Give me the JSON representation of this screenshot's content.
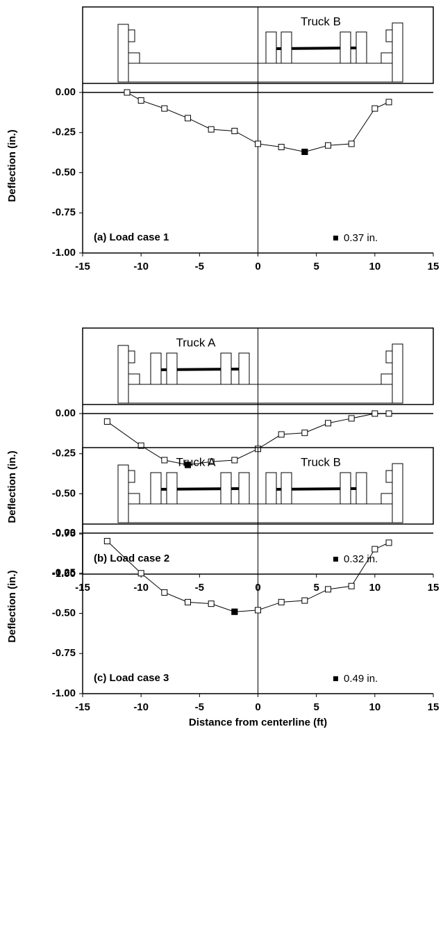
{
  "chart_data": [
    {
      "type": "line",
      "annotation": "(a) Load case 1",
      "truck_labels": [
        "Truck B"
      ],
      "ylabel": "Deflection (in.)",
      "series": [
        {
          "color": "#000000",
          "x": [
            -11.2,
            -10,
            -8,
            -6,
            -4,
            -2,
            0,
            2,
            4,
            6,
            8,
            10,
            11.2
          ],
          "values": [
            0,
            -0.05,
            -0.1,
            -0.16,
            -0.23,
            -0.24,
            -0.32,
            -0.34,
            -0.37,
            -0.33,
            -0.32,
            -0.1,
            -0.06
          ]
        },
        {
          "name": "0.37 in.",
          "color": "#000000",
          "x": [
            4
          ],
          "values": [
            -0.37
          ]
        }
      ],
      "xlim": [
        -15,
        15
      ],
      "xticks": [
        -15,
        -10,
        -5,
        0,
        5,
        10,
        15
      ],
      "ylim": [
        -1,
        0
      ],
      "yticks": [
        {
          "value": -1,
          "label": "-1.00"
        },
        {
          "value": -0.75,
          "label": "-0.75"
        },
        {
          "value": -0.5,
          "label": "-0.50"
        },
        {
          "value": -0.25,
          "label": "-0.25"
        },
        {
          "value": 0,
          "label": "0.00"
        }
      ]
    },
    {
      "type": "line",
      "annotation": "(b) Load case 2",
      "truck_labels": [
        "Truck A"
      ],
      "ylabel": "Deflection (in.)",
      "series": [
        {
          "color": "#000000",
          "x": [
            -12.9,
            -10,
            -8,
            -6,
            -4,
            -2,
            0,
            2,
            4,
            6,
            8,
            10,
            11.2
          ],
          "values": [
            -0.05,
            -0.2,
            -0.29,
            -0.32,
            -0.3,
            -0.29,
            -0.22,
            -0.13,
            -0.12,
            -0.06,
            -0.03,
            0,
            0
          ]
        },
        {
          "name": "0.32 in.",
          "color": "#000000",
          "x": [
            -6
          ],
          "values": [
            -0.32
          ]
        }
      ],
      "xlim": [
        -15,
        15
      ],
      "xticks": [
        -15,
        -10,
        -5,
        0,
        5,
        10,
        15
      ],
      "ylim": [
        -1,
        0
      ],
      "yticks": [
        {
          "value": -1,
          "label": "-1.00"
        },
        {
          "value": -0.75,
          "label": "-0.75"
        },
        {
          "value": -0.5,
          "label": "-0.50"
        },
        {
          "value": -0.25,
          "label": "-0.25"
        },
        {
          "value": 0,
          "label": "0.00"
        }
      ]
    },
    {
      "type": "line",
      "annotation": "(c) Load case 3",
      "truck_labels": [
        "Truck A",
        "Truck B"
      ],
      "ylabel": "Deflection (in.)",
      "xlabel": "Distance from centerline (ft)",
      "series": [
        {
          "color": "#000000",
          "x": [
            -12.9,
            -10,
            -8,
            -6,
            -4,
            -2,
            0,
            2,
            4,
            6,
            8,
            10,
            11.2
          ],
          "values": [
            -0.05,
            -0.25,
            -0.37,
            -0.43,
            -0.44,
            -0.49,
            -0.48,
            -0.43,
            -0.42,
            -0.35,
            -0.33,
            -0.1,
            -0.06
          ]
        },
        {
          "name": "0.49 in.",
          "color": "#000000",
          "x": [
            -2
          ],
          "values": [
            -0.49
          ]
        }
      ],
      "xlim": [
        -15,
        15
      ],
      "xticks": [
        -15,
        -10,
        -5,
        0,
        5,
        10,
        15
      ],
      "ylim": [
        -1,
        0
      ],
      "yticks": [
        {
          "value": -1,
          "label": "-1.00"
        },
        {
          "value": -0.75,
          "label": "-0.75"
        },
        {
          "value": -0.5,
          "label": "-0.50"
        },
        {
          "value": -0.25,
          "label": "-0.25"
        },
        {
          "value": 0,
          "label": "0.00"
        }
      ]
    }
  ]
}
